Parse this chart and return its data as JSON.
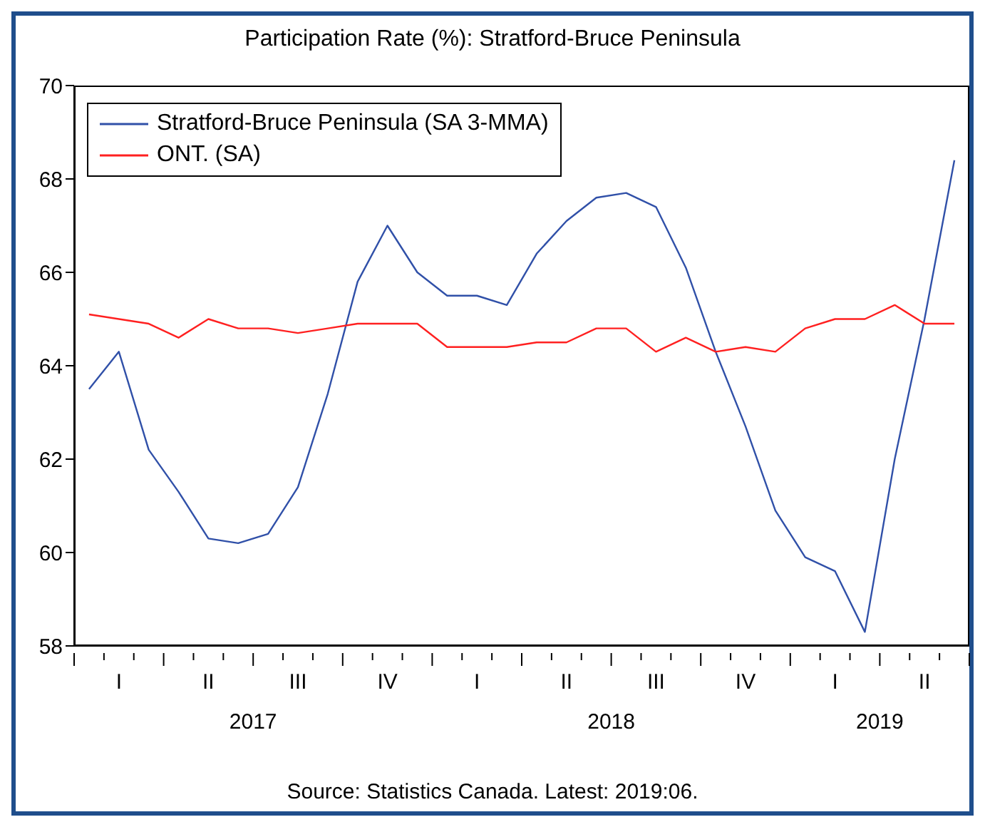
{
  "chart_data": {
    "type": "line",
    "title": "Participation Rate (%): Stratford-Bruce Peninsula",
    "categories": [
      null,
      "I",
      null,
      null,
      "II",
      null,
      null,
      "III",
      null,
      null,
      "IV",
      null,
      null,
      "I",
      null,
      null,
      "II",
      null,
      null,
      "III",
      null,
      null,
      "IV",
      null,
      null,
      "I",
      null,
      null,
      "II",
      null
    ],
    "series": [
      {
        "name": "Stratford-Bruce Peninsula (SA 3-MMA)",
        "color": "#3050a8",
        "values": [
          63.5,
          64.3,
          62.2,
          61.3,
          60.3,
          60.2,
          60.4,
          61.4,
          63.4,
          65.8,
          67.0,
          66.0,
          65.5,
          65.5,
          65.3,
          66.4,
          67.1,
          67.6,
          67.7,
          67.4,
          66.1,
          64.3,
          62.7,
          60.9,
          59.9,
          59.6,
          58.3,
          62.0,
          65.0,
          68.4
        ]
      },
      {
        "name": "ONT. (SA)",
        "color": "#ff2020",
        "values": [
          65.1,
          65.0,
          64.9,
          64.6,
          65.0,
          64.8,
          64.8,
          64.7,
          64.8,
          64.9,
          64.9,
          64.9,
          64.4,
          64.4,
          64.4,
          64.5,
          64.5,
          64.8,
          64.8,
          64.3,
          64.6,
          64.3,
          64.4,
          64.3,
          64.8,
          65.0,
          65.0,
          65.3,
          64.9,
          64.9
        ]
      }
    ],
    "ylim": [
      58,
      70
    ],
    "yticks": [
      58,
      60,
      62,
      64,
      66,
      68,
      70
    ],
    "legend": "top left",
    "line_style": "solid",
    "marker": "none",
    "annotations": [
      "2017",
      "2018",
      "2019",
      "Source: Statistics Canada. Latest: 2019:06."
    ]
  }
}
